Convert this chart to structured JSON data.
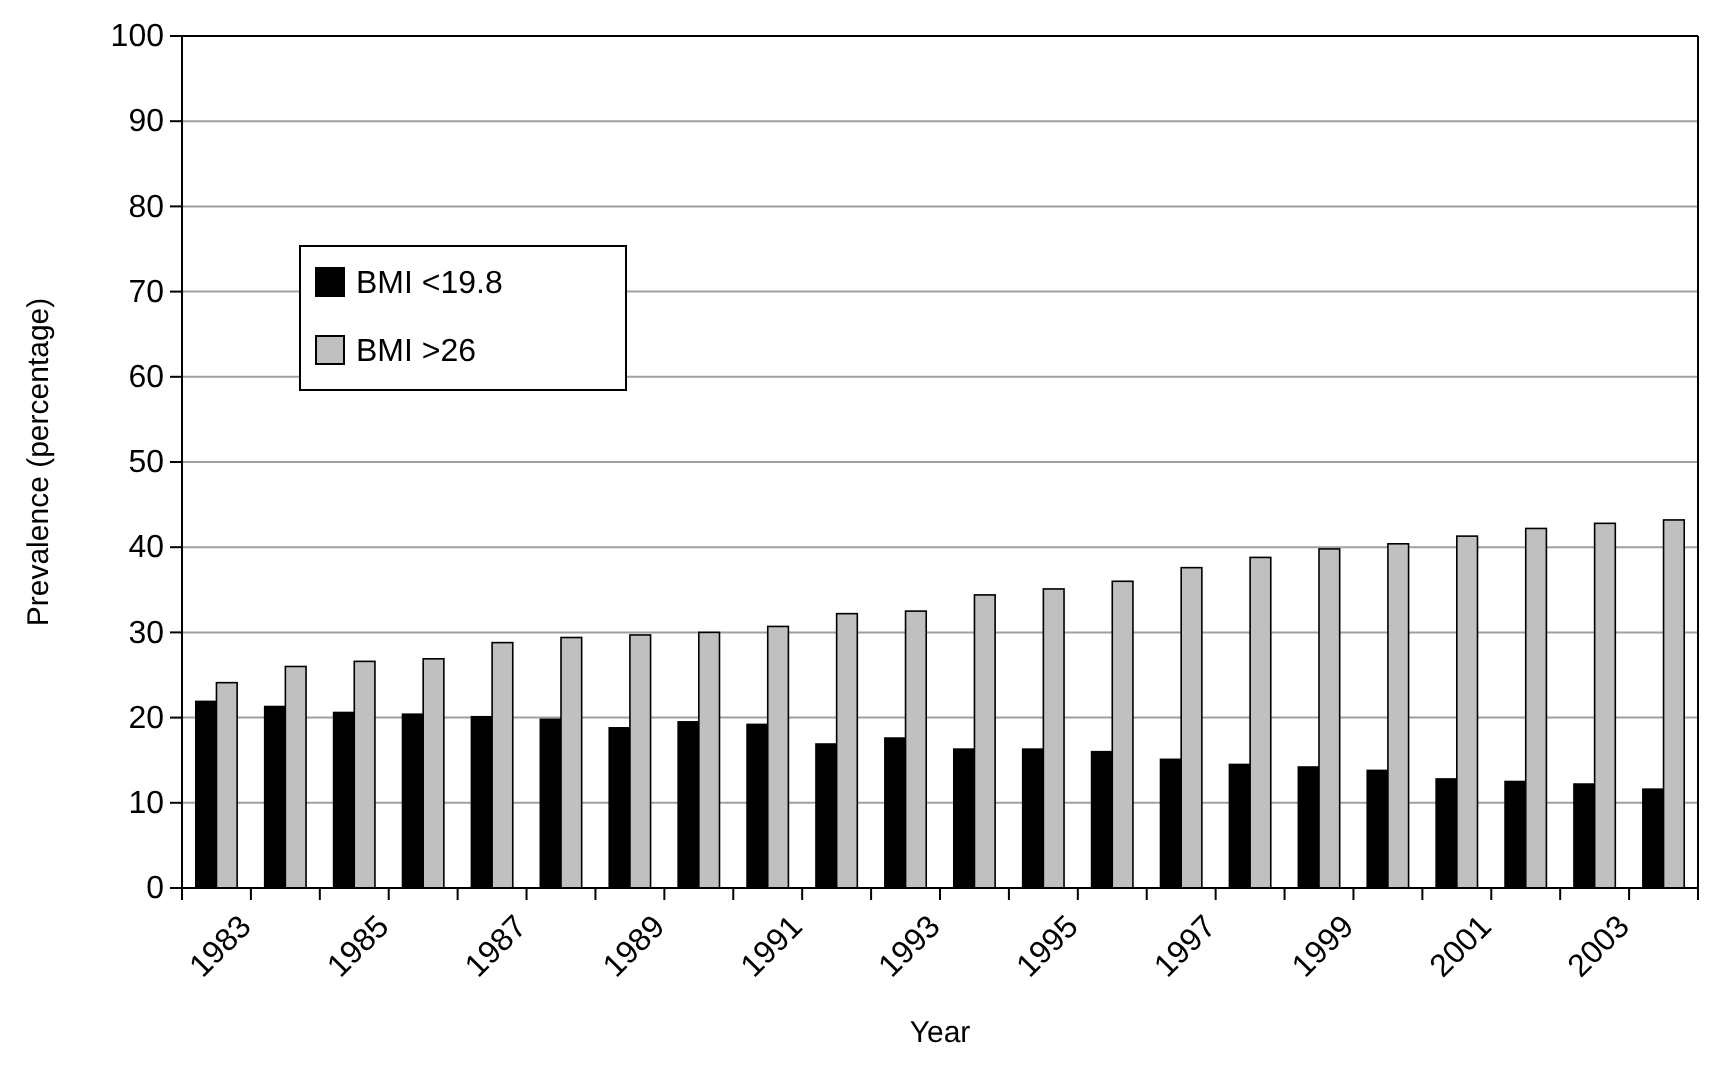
{
  "chart_data": {
    "type": "bar",
    "xlabel": "Year",
    "ylabel": "Prevalence (percentage)",
    "categories": [
      "1983",
      null,
      "1985",
      null,
      "1987",
      null,
      "1989",
      null,
      "1991",
      null,
      "1993",
      null,
      "1995",
      null,
      "1997",
      null,
      "1999",
      null,
      "2001",
      null,
      "2003",
      null
    ],
    "series": [
      {
        "name": "BMI <19.8",
        "color": "#000000",
        "values": [
          21.9,
          21.3,
          20.6,
          20.4,
          20.1,
          19.8,
          18.8,
          19.5,
          19.2,
          16.9,
          17.6,
          16.3,
          16.3,
          16.0,
          15.1,
          14.5,
          14.2,
          13.8,
          12.8,
          12.5,
          12.2,
          11.6
        ]
      },
      {
        "name": "BMI >26",
        "color": "#c0c0c0",
        "values": [
          24.1,
          26.0,
          26.6,
          26.9,
          28.8,
          29.4,
          29.7,
          30.0,
          30.7,
          32.2,
          32.5,
          34.4,
          35.1,
          36.0,
          37.6,
          38.8,
          39.8,
          40.4,
          41.3,
          42.2,
          42.8,
          43.2
        ]
      }
    ],
    "ylim": [
      0,
      100
    ],
    "yticks": [
      0,
      10,
      20,
      30,
      40,
      50,
      60,
      70,
      80,
      90,
      100
    ],
    "grid": "y",
    "legend": "top left"
  }
}
